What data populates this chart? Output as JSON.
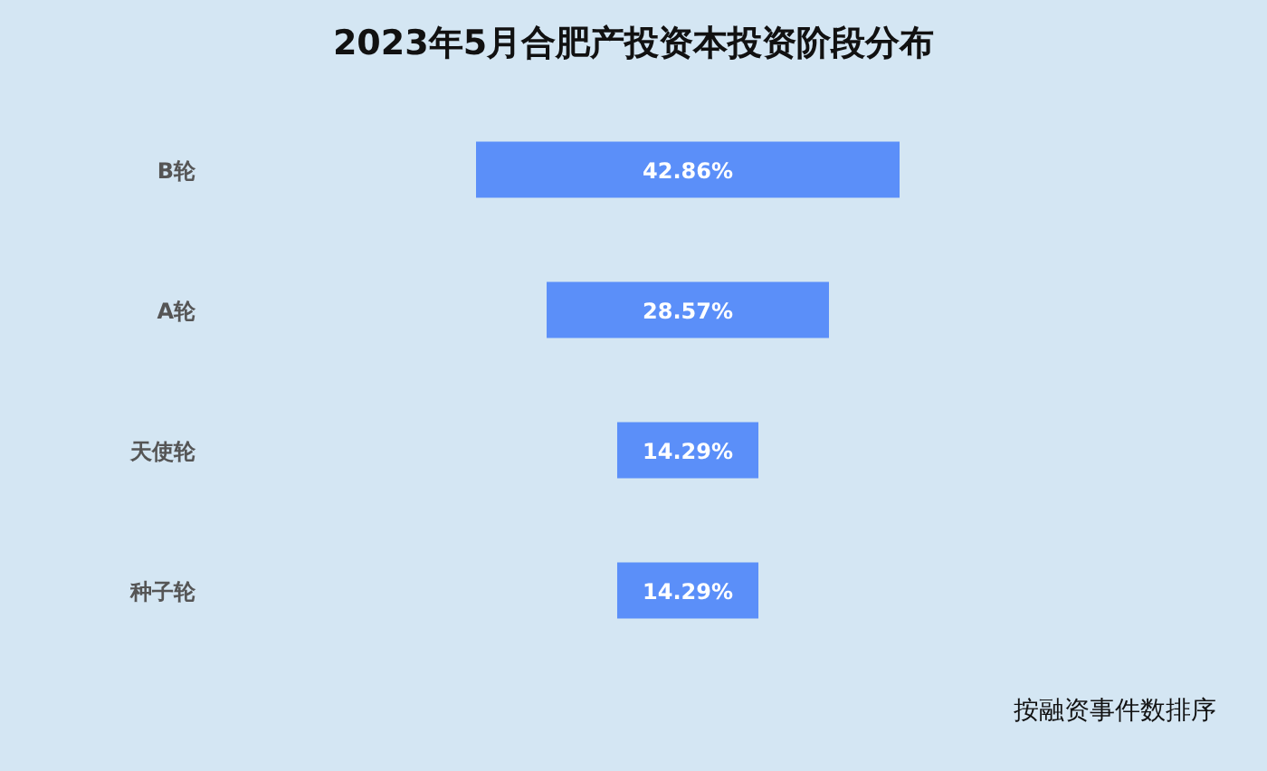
{
  "chart_data": {
    "type": "other",
    "title": "2023年5月合肥产投资本投资阶段分布",
    "categories": [
      "B轮",
      "A轮",
      "天使轮",
      "种子轮"
    ],
    "values": [
      42.86,
      28.57,
      14.29,
      14.29
    ],
    "value_labels": [
      "42.86%",
      "28.57%",
      "14.29%",
      "14.29%"
    ],
    "color": "#5b8ff9",
    "annotations": [
      "按融资事件数排序"
    ]
  }
}
